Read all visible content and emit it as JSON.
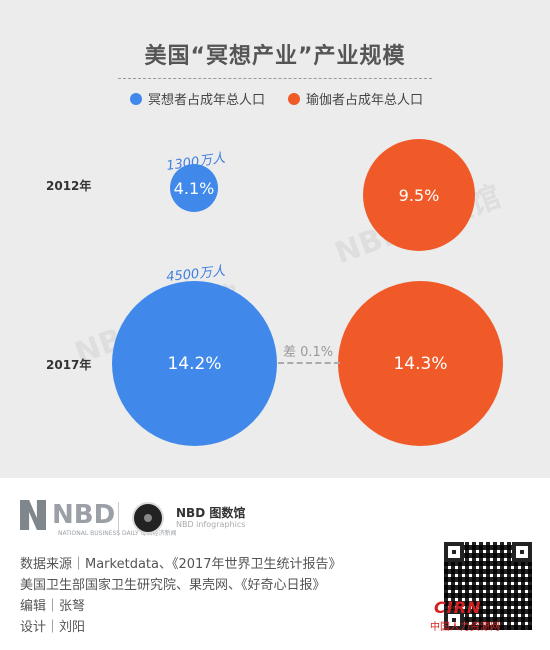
{
  "chart_data": {
    "type": "bubble",
    "title": "美国“冥想产业”产业规模",
    "series": [
      {
        "name": "冥想者占成年总人口",
        "color": "#4089ea"
      },
      {
        "name": "瑜伽者占成年总人口",
        "color": "#f05a28"
      }
    ],
    "categories": [
      "2012年",
      "2017年"
    ],
    "values": {
      "meditation": [
        4.1,
        14.2
      ],
      "yoga": [
        9.5,
        14.3
      ]
    },
    "value_labels": {
      "meditation": [
        "4.1%",
        "14.2%"
      ],
      "yoga": [
        "9.5%",
        "14.3%"
      ]
    },
    "population_labels": [
      "1300万人",
      "4500万人"
    ],
    "gap_label": "差 0.1%"
  },
  "footer": {
    "nbd_logo": "NBD",
    "nbd_tagline": "NATIONAL BUSINESS DAILY 每日经济新闻",
    "brand": "NBD 图数馆",
    "brand_sub": "NBD infographics",
    "source_line1": "数据来源｜Marketdata、《2017年世界卫生统计报告》",
    "source_line2": "美国卫生部国家卫生研究院、果壳网、《好奇心日报》",
    "editor": "编辑｜张弩",
    "designer": "设计｜刘阳",
    "stamp": "CIRN",
    "stamp_sub": "中国人力资源网"
  }
}
